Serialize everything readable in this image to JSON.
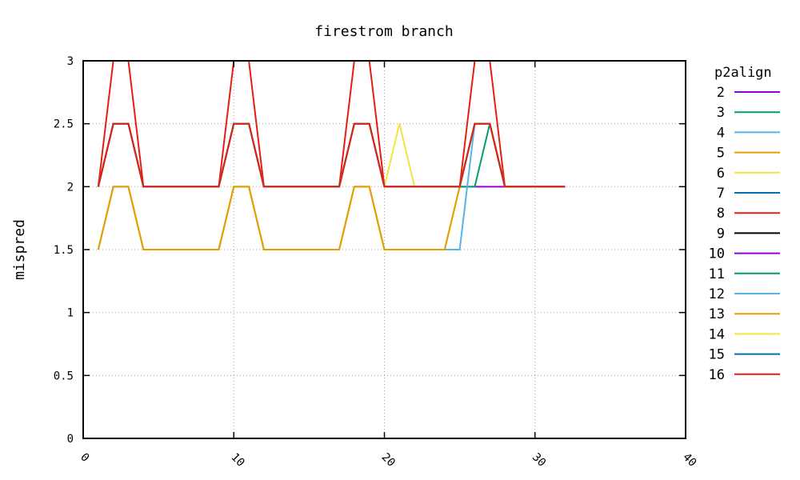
{
  "chart_data": {
    "type": "line",
    "title": "firestrom branch",
    "xlabel": "",
    "ylabel": "mispred",
    "xlim": [
      0,
      40
    ],
    "ylim": [
      0,
      3
    ],
    "xticks": [
      "0",
      "10",
      "20",
      "30",
      "40"
    ],
    "yticks": [
      "0",
      "0.5",
      "1",
      "1.5",
      "2",
      "2.5",
      "3"
    ],
    "grid": true,
    "legend_title": "p2align",
    "legend_position": "right",
    "x": [
      1,
      2,
      3,
      4,
      5,
      6,
      7,
      8,
      9,
      10,
      11,
      12,
      13,
      14,
      15,
      16,
      17,
      18,
      19,
      20,
      21,
      22,
      23,
      24,
      25,
      26,
      27,
      28,
      29,
      30,
      31,
      32
    ],
    "series": [
      {
        "name": "2",
        "color": "#9400d3",
        "values": [
          2,
          2.5,
          2.5,
          2,
          2,
          2,
          2,
          2,
          2,
          2.5,
          2.5,
          2,
          2,
          2,
          2,
          2,
          2,
          2.5,
          2.5,
          2,
          2,
          2,
          2,
          2,
          2,
          2,
          2,
          2,
          2,
          2,
          2,
          2
        ]
      },
      {
        "name": "3",
        "color": "#009e73",
        "values": [
          2,
          2.5,
          2.5,
          2,
          2,
          2,
          2,
          2,
          2,
          2.5,
          2.5,
          2,
          2,
          2,
          2,
          2,
          2,
          2.5,
          2.5,
          2,
          2,
          2,
          2,
          2,
          2,
          2,
          2.5,
          2,
          2,
          2,
          2,
          2
        ]
      },
      {
        "name": "4",
        "color": "#56b4e9",
        "values": [
          1.5,
          2,
          2,
          1.5,
          1.5,
          1.5,
          1.5,
          1.5,
          1.5,
          2,
          2,
          1.5,
          1.5,
          1.5,
          1.5,
          1.5,
          1.5,
          2,
          2,
          1.5,
          1.5,
          1.5,
          1.5,
          1.5,
          1.5,
          2.5,
          2.5,
          2,
          2,
          2,
          2,
          2
        ]
      },
      {
        "name": "5",
        "color": "#e69f00",
        "values": [
          1.5,
          2,
          2,
          1.5,
          1.5,
          1.5,
          1.5,
          1.5,
          1.5,
          2,
          2,
          1.5,
          1.5,
          1.5,
          1.5,
          1.5,
          1.5,
          2,
          2,
          1.5,
          1.5,
          1.5,
          1.5,
          1.5,
          2,
          2.5,
          2.5,
          2,
          2,
          2,
          2,
          2
        ]
      },
      {
        "name": "6",
        "color": "#f0e442",
        "values": [
          2,
          2.5,
          2.5,
          2,
          2,
          2,
          2,
          2,
          2,
          2.5,
          2.5,
          2,
          2,
          2,
          2,
          2,
          2,
          2.5,
          2.5,
          2,
          2.5,
          2,
          2,
          2,
          2,
          2.5,
          2.5,
          2,
          2,
          2,
          2,
          2
        ]
      },
      {
        "name": "7",
        "color": "#0072b2",
        "values": [
          2,
          2.5,
          2.5,
          2,
          2,
          2,
          2,
          2,
          2,
          2.5,
          2.5,
          2,
          2,
          2,
          2,
          2,
          2,
          2.5,
          2.5,
          2,
          2,
          2,
          2,
          2,
          2,
          2.5,
          2.5,
          2,
          2,
          2,
          2,
          2
        ]
      },
      {
        "name": "8",
        "color": "#e51e10",
        "values": [
          2,
          3,
          3,
          2,
          2,
          2,
          2,
          2,
          2,
          3,
          3,
          2,
          2,
          2,
          2,
          2,
          2,
          3,
          3,
          2,
          2,
          2,
          2,
          2,
          2,
          3,
          3,
          2,
          2,
          2,
          2,
          2
        ]
      },
      {
        "name": "9",
        "color": "#000000",
        "values": [
          2,
          2.5,
          2.5,
          2,
          2,
          2,
          2,
          2,
          2,
          2.5,
          2.5,
          2,
          2,
          2,
          2,
          2,
          2,
          2.5,
          2.5,
          2,
          2,
          2,
          2,
          2,
          2,
          2.5,
          2.5,
          2,
          2,
          2,
          2,
          2
        ]
      },
      {
        "name": "10",
        "color": "#9400d3",
        "values": [
          2,
          2.5,
          2.5,
          2,
          2,
          2,
          2,
          2,
          2,
          2.5,
          2.5,
          2,
          2,
          2,
          2,
          2,
          2,
          2.5,
          2.5,
          2,
          2,
          2,
          2,
          2,
          2,
          2.5,
          2.5,
          2,
          2,
          2,
          2,
          2
        ]
      },
      {
        "name": "11",
        "color": "#009e73",
        "values": [
          2,
          2.5,
          2.5,
          2,
          2,
          2,
          2,
          2,
          2,
          2.5,
          2.5,
          2,
          2,
          2,
          2,
          2,
          2,
          2.5,
          2.5,
          2,
          2,
          2,
          2,
          2,
          2,
          2.5,
          2.5,
          2,
          2,
          2,
          2,
          2
        ]
      },
      {
        "name": "12",
        "color": "#56b4e9",
        "values": [
          2,
          2.5,
          2.5,
          2,
          2,
          2,
          2,
          2,
          2,
          2.5,
          2.5,
          2,
          2,
          2,
          2,
          2,
          2,
          2.5,
          2.5,
          2,
          2,
          2,
          2,
          2,
          2,
          2.5,
          2.5,
          2,
          2,
          2,
          2,
          2
        ]
      },
      {
        "name": "13",
        "color": "#e69f00",
        "values": [
          1.5,
          2,
          2,
          1.5,
          1.5,
          1.5,
          1.5,
          1.5,
          1.5,
          2,
          2,
          1.5,
          1.5,
          1.5,
          1.5,
          1.5,
          1.5,
          2,
          2,
          1.5,
          1.5,
          1.5,
          1.5,
          1.5,
          2,
          2.5,
          2.5,
          2,
          2,
          2,
          2,
          2
        ]
      },
      {
        "name": "14",
        "color": "#f0e442",
        "values": [
          2,
          2.5,
          2.5,
          2,
          2,
          2,
          2,
          2,
          2,
          2.5,
          2.5,
          2,
          2,
          2,
          2,
          2,
          2,
          2.5,
          2.5,
          2,
          2,
          2,
          2,
          2,
          2,
          2.5,
          2.5,
          2,
          2,
          2,
          2,
          2
        ]
      },
      {
        "name": "15",
        "color": "#0072b2",
        "values": [
          2,
          2.5,
          2.5,
          2,
          2,
          2,
          2,
          2,
          2,
          2.5,
          2.5,
          2,
          2,
          2,
          2,
          2,
          2,
          2.5,
          2.5,
          2,
          2,
          2,
          2,
          2,
          2,
          2.5,
          2.5,
          2,
          2,
          2,
          2,
          2
        ]
      },
      {
        "name": "16",
        "color": "#e51e10",
        "values": [
          2,
          2.5,
          2.5,
          2,
          2,
          2,
          2,
          2,
          2,
          2.5,
          2.5,
          2,
          2,
          2,
          2,
          2,
          2,
          2.5,
          2.5,
          2,
          2,
          2,
          2,
          2,
          2,
          2.5,
          2.5,
          2,
          2,
          2,
          2,
          2
        ]
      }
    ]
  }
}
